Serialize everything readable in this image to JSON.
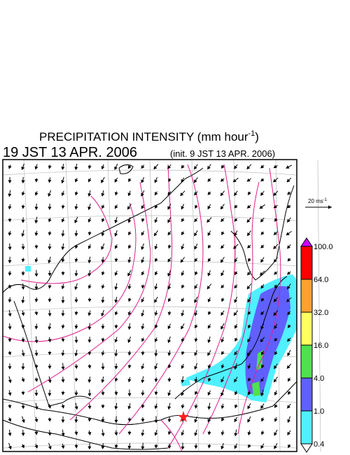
{
  "header": {
    "title": "PRECIPITATION INTENSITY (mm hour",
    "title_exponent": "-1",
    "title_close": ")",
    "valid_time": "19 JST 13 APR. 2006",
    "init_time": "(init. 9 JST 13 APR. 2006)"
  },
  "wind_scale": {
    "label": "20 ms",
    "exponent": "-1"
  },
  "colorbar": {
    "labels": [
      "100.0",
      "64.0",
      "32.0",
      "16.0",
      "4.0",
      "1.0",
      "0.4"
    ],
    "colors": [
      "#cc00ff",
      "#ff0000",
      "#ffa030",
      "#ffff60",
      "#50e050",
      "#6060ff",
      "#50f0ff",
      "#ffffff"
    ]
  }
}
